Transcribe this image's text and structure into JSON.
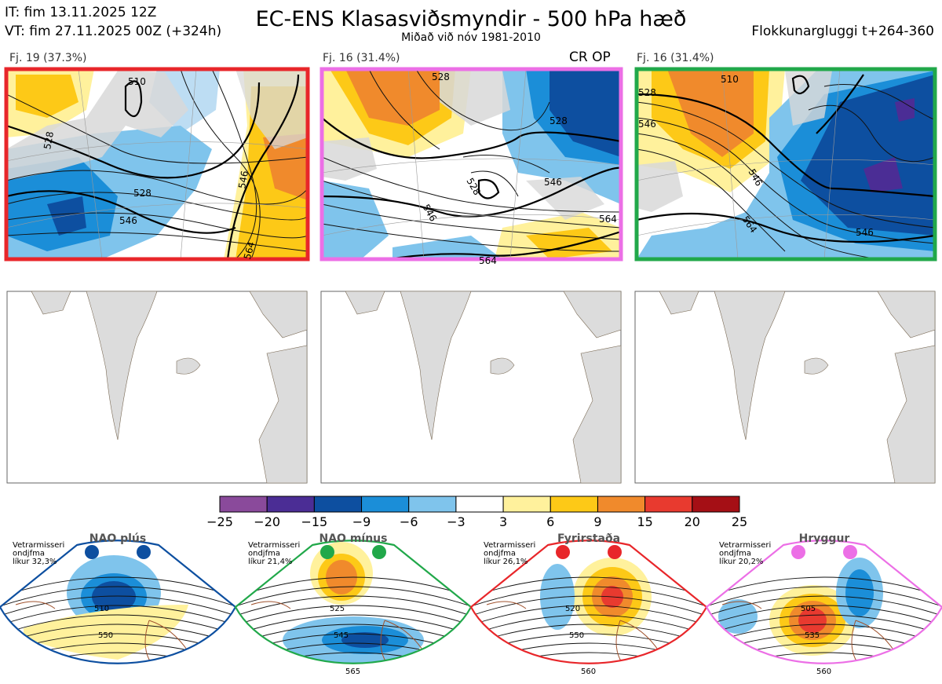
{
  "header": {
    "it": "IT: fim 13.11.2025 12Z",
    "vt": "VT: fim 27.11.2025 00Z  (+324h)",
    "title": "EC-ENS Klasasviðsmyndir - 500 hPa hæð",
    "subtitle": "Miðað við nóv 1981-2010",
    "window": "Flokkunargluggi t+264-360"
  },
  "panels": [
    {
      "label": "Fj. 19 (37.3%)",
      "border_color": "#e8262a",
      "contours": [
        "510",
        "528",
        "528",
        "546",
        "546",
        "564"
      ]
    },
    {
      "label": "Fj. 16 (31.4%)",
      "border_color": "#ec6fe6",
      "contours": [
        "528",
        "528",
        "528",
        "546",
        "546",
        "564",
        "564"
      ],
      "tag": "CR OP"
    },
    {
      "label": "Fj. 16 (31.4%)",
      "border_color": "#21a84a",
      "contours": [
        "510",
        "528",
        "546",
        "546",
        "564",
        "546"
      ]
    }
  ],
  "colorbar": {
    "ticks": [
      "−25",
      "−20",
      "−15",
      "−9",
      "−6",
      "−3",
      "3",
      "6",
      "9",
      "15",
      "20",
      "25"
    ],
    "colors": [
      "#8a4a9b",
      "#4b2d95",
      "#0d4fa0",
      "#1b8ed8",
      "#7fc4ec",
      "#ffffff",
      "#fff19c",
      "#fdc917",
      "#f08a2c",
      "#e83a2f",
      "#a50f15"
    ]
  },
  "regimes": [
    {
      "name": "NAO plús",
      "info": [
        "Vetrarmisseri",
        "ondjfma",
        "líkur 32,3%"
      ],
      "color": "#0d4fa0",
      "contours": [
        "510",
        "550"
      ]
    },
    {
      "name": "NAO mínus",
      "info": [
        "Vetrarmisseri",
        "ondjfma",
        "líkur 21,4%"
      ],
      "color": "#21a84a",
      "contours": [
        "525",
        "545",
        "565"
      ]
    },
    {
      "name": "Fyrirstaða",
      "info": [
        "Vetrarmisseri",
        "ondjfma",
        "líkur 26,1%"
      ],
      "color": "#e8262a",
      "contours": [
        "520",
        "550",
        "560"
      ]
    },
    {
      "name": "Hryggur",
      "info": [
        "Vetrarmisseri",
        "ondjfma",
        "líkur 20,2%"
      ],
      "color": "#ec6fe6",
      "contours": [
        "505",
        "535",
        "560"
      ]
    }
  ]
}
